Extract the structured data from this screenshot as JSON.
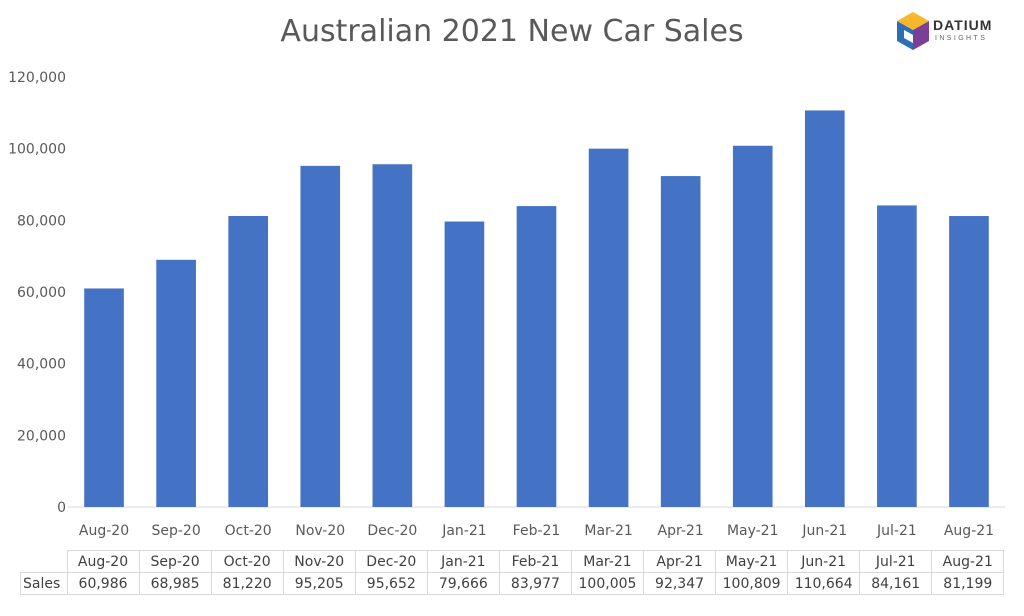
{
  "chart_data": {
    "type": "bar",
    "title": "Australian 2021 New Car Sales",
    "categories": [
      "Aug-20",
      "Sep-20",
      "Oct-20",
      "Nov-20",
      "Dec-20",
      "Jan-21",
      "Feb-21",
      "Mar-21",
      "Apr-21",
      "May-21",
      "Jun-21",
      "Jul-21",
      "Aug-21"
    ],
    "series": [
      {
        "name": "Sales",
        "values": [
          60986,
          68985,
          81220,
          95205,
          95652,
          79666,
          83977,
          100005,
          92347,
          100809,
          110664,
          84161,
          81199
        ],
        "color": "#4472c4"
      }
    ],
    "ylim": [
      0,
      120000
    ],
    "yticks": [
      "0",
      "20,000",
      "40,000",
      "60,000",
      "80,000",
      "100,000",
      "120,000"
    ],
    "grid": false,
    "xlabel": "",
    "ylabel": "",
    "data_table": {
      "row_label": "Sales",
      "values": [
        "60,986",
        "68,985",
        "81,220",
        "95,205",
        "95,652",
        "79,666",
        "83,977",
        "100,005",
        "92,347",
        "100,809",
        "110,664",
        "84,161",
        "81,199"
      ]
    }
  },
  "logo": {
    "word": "DATIUM",
    "sub": "INSIGHTS",
    "colors": [
      "#2d6fb7",
      "#e3312d",
      "#f7b72b",
      "#2bb673",
      "#7b3f98"
    ]
  }
}
